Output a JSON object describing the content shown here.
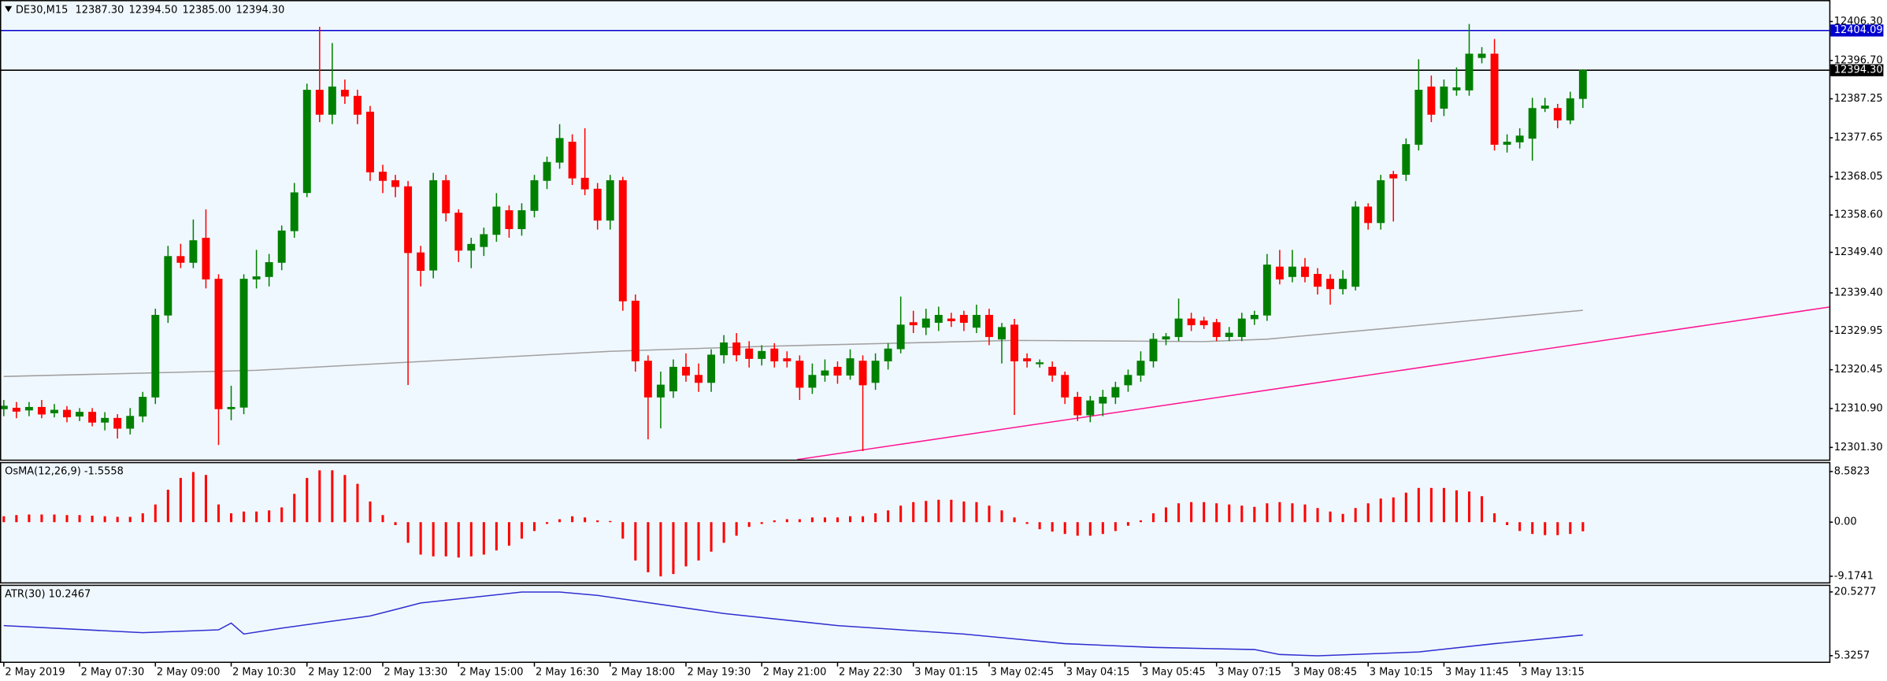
{
  "chart_data": [
    {
      "type": "candlestick",
      "title": "DE30,M15",
      "header_labels": [
        "12387.30",
        "12394.50",
        "12385.00",
        "12394.30"
      ],
      "bull_color": "#008000",
      "bear_color": "#ff0000",
      "xlim": [
        -0.3,
        144.5
      ],
      "xticks": [
        {
          "value": 0,
          "label": "2 May 2019"
        },
        {
          "value": 6,
          "label": "2 May 07:30"
        },
        {
          "value": 12,
          "label": "2 May 09:00"
        },
        {
          "value": 18,
          "label": "2 May 10:30"
        },
        {
          "value": 24,
          "label": "2 May 12:00"
        },
        {
          "value": 30,
          "label": "2 May 13:30"
        },
        {
          "value": 36,
          "label": "2 May 15:00"
        },
        {
          "value": 42,
          "label": "2 May 16:30"
        },
        {
          "value": 48,
          "label": "2 May 18:00"
        },
        {
          "value": 54,
          "label": "2 May 19:30"
        },
        {
          "value": 60,
          "label": "2 May 21:00"
        },
        {
          "value": 66,
          "label": "2 May 22:30"
        },
        {
          "value": 72,
          "label": "3 May 01:15"
        },
        {
          "value": 78,
          "label": "3 May 02:45"
        },
        {
          "value": 84,
          "label": "3 May 04:15"
        },
        {
          "value": 90,
          "label": "3 May 05:45"
        },
        {
          "value": 96,
          "label": "3 May 07:15"
        },
        {
          "value": 102,
          "label": "3 May 08:45"
        },
        {
          "value": 108,
          "label": "3 May 10:15"
        },
        {
          "value": 114,
          "label": "3 May 11:45"
        },
        {
          "value": 120,
          "label": "3 May 13:15"
        }
      ],
      "ylim": [
        12298.3,
        12411.6
      ],
      "yticks": [
        {
          "value": 12406.3,
          "label": "12406.30"
        },
        {
          "value": 12396.7,
          "label": "12396.70"
        },
        {
          "value": 12387.25,
          "label": "12387.25"
        },
        {
          "value": 12377.65,
          "label": "12377.65"
        },
        {
          "value": 12368.05,
          "label": "12368.05"
        },
        {
          "value": 12358.6,
          "label": "12358.60"
        },
        {
          "value": 12349.4,
          "label": "12349.40"
        },
        {
          "value": 12339.4,
          "label": "12339.40"
        },
        {
          "value": 12329.95,
          "label": "12329.95"
        },
        {
          "value": 12320.45,
          "label": "12320.45"
        },
        {
          "value": 12310.9,
          "label": "12310.90"
        },
        {
          "value": 12301.3,
          "label": "12301.30"
        }
      ],
      "levels": [
        {
          "value": 12404.09,
          "label": "12404.09",
          "color": "#0000cd"
        },
        {
          "value": 12394.3,
          "label": "12394.30",
          "color": "#000000"
        }
      ],
      "ma": {
        "color": "#a0a0a0",
        "x": [
          0,
          20,
          48,
          60,
          80,
          95,
          100,
          110,
          125
        ],
        "values": [
          12318.8,
          12320.3,
          12325.0,
          12326.2,
          12327.7,
          12327.4,
          12328.0,
          12330.8,
          12335.1
        ]
      },
      "trendline": {
        "color": "#ff1493",
        "x": [
          62.8,
          144.5
        ],
        "values": [
          12298.3,
          12335.9
        ]
      },
      "open": [
        12310.8,
        12311.0,
        12310.5,
        12311.2,
        12309.8,
        12310.5,
        12309.0,
        12310.0,
        12307.5,
        12308.5,
        12306.0,
        12309.0,
        12313.7,
        12333.9,
        12348.4,
        12346.9,
        12352.9,
        12342.8,
        12310.8,
        12311.2,
        12342.8,
        12343.4,
        12346.9,
        12354.7,
        12364.1,
        12389.4,
        12383.4,
        12389.4,
        12387.9,
        12384.0,
        12369.2,
        12367.1,
        12365.6,
        12349.3,
        12345.0,
        12367.1,
        12359.1,
        12349.9,
        12350.8,
        12353.8,
        12359.7,
        12355.2,
        12359.7,
        12367.1,
        12371.6,
        12376.6,
        12367.7,
        12365.0,
        12357.3,
        12367.1,
        12337.4,
        12322.6,
        12313.7,
        12315.2,
        12321.1,
        12319.1,
        12317.3,
        12324.1,
        12327.1,
        12325.6,
        12323.2,
        12325.6,
        12323.2,
        12322.6,
        12316.1,
        12319.1,
        12321.1,
        12319.1,
        12322.6,
        12317.3,
        12322.6,
        12325.6,
        12332.1,
        12330.9,
        12332.1,
        12333.0,
        12333.9,
        12330.9,
        12333.9,
        12328.0,
        12331.5,
        12323.2,
        12322.0,
        12321.1,
        12319.1,
        12313.7,
        12309.3,
        12312.2,
        12313.7,
        12316.7,
        12319.1,
        12322.6,
        12328.0,
        12328.6,
        12333.0,
        12332.5,
        12332.1,
        12328.6,
        12328.6,
        12333.0,
        12333.9,
        12345.8,
        12343.4,
        12345.8,
        12344.0,
        12342.8,
        12340.4,
        12341.0,
        12360.6,
        12356.7,
        12368.6,
        12368.6,
        12376.0,
        12390.2,
        12384.9,
        12389.4,
        12389.4,
        12397.4,
        12398.3,
        12376.0,
        12376.6,
        12377.5,
        12384.9,
        12384.9,
        12382.0,
        12387.3
      ],
      "high": [
        12313,
        12312.5,
        12312.5,
        12313,
        12312,
        12311.5,
        12311,
        12311,
        12310,
        12309.5,
        12311,
        12315,
        12335.5,
        12351,
        12351.5,
        12357.5,
        12360,
        12344,
        12316.5,
        12344,
        12350,
        12349,
        12356,
        12366.5,
        12391,
        12405,
        12401,
        12392,
        12389.5,
        12385.5,
        12371,
        12368.5,
        12367,
        12351,
        12369,
        12368.5,
        12360,
        12353,
        12355.5,
        12364,
        12361,
        12361.5,
        12368.5,
        12373,
        12381,
        12378.5,
        12380,
        12366.5,
        12368.5,
        12368,
        12339,
        12324,
        12320,
        12323,
        12324.5,
        12322,
        12325.5,
        12329,
        12329.5,
        12327.5,
        12326.5,
        12327,
        12325,
        12324,
        12322,
        12323,
        12322.5,
        12325.5,
        12324,
        12324.5,
        12327,
        12338.5,
        12335,
        12335.5,
        12336,
        12334.5,
        12335,
        12336.5,
        12335.5,
        12332,
        12333,
        12324.5,
        12323,
        12322.5,
        12320,
        12315,
        12314,
        12315.5,
        12317.5,
        12320.5,
        12325,
        12329.5,
        12329.5,
        12338,
        12334.5,
        12333.5,
        12333,
        12331,
        12334.5,
        12335,
        12349,
        12350,
        12350,
        12348,
        12345.5,
        12344,
        12345,
        12362,
        12361.5,
        12368.5,
        12369.5,
        12377.5,
        12397,
        12393,
        12392,
        12395,
        12405.7,
        12400,
        12402,
        12378.5,
        12380,
        12387.5,
        12387.5,
        12386,
        12389,
        12394.5
      ],
      "low": [
        12309,
        12308.5,
        12309,
        12308.5,
        12308.7,
        12307.5,
        12307.8,
        12306.5,
        12305.5,
        12303.5,
        12304.5,
        12307.5,
        12312,
        12332,
        12345.5,
        12345.5,
        12340.5,
        12301.9,
        12308,
        12309.5,
        12340.5,
        12341,
        12345,
        12353,
        12363,
        12381.5,
        12381,
        12386,
        12381,
        12367,
        12364,
        12363,
        12316.7,
        12341,
        12343,
        12357,
        12347,
        12345.5,
        12348.5,
        12352,
        12353,
        12353.5,
        12358,
        12365,
        12370,
        12366,
        12363.5,
        12355,
        12355,
        12335,
        12320,
        12303.3,
        12306,
        12313.5,
        12317.5,
        12315,
        12315,
        12322,
        12322.5,
        12321,
        12321.5,
        12321,
        12321,
        12313,
        12314.5,
        12317.5,
        12317,
        12318,
        12300.4,
        12315.5,
        12320.5,
        12324.5,
        12329.5,
        12329,
        12330,
        12331,
        12330,
        12329.5,
        12326.5,
        12322,
        12309.3,
        12321,
        12321,
        12317.5,
        12312,
        12307.8,
        12307.5,
        12309,
        12312,
        12315,
        12317.5,
        12321,
        12326.5,
        12327.5,
        12330,
        12330.5,
        12327.5,
        12327.5,
        12327.5,
        12331.5,
        12332.5,
        12341.5,
        12342,
        12342,
        12339,
        12336.5,
        12339,
        12340,
        12355,
        12355,
        12357,
        12367,
        12374.5,
        12381.5,
        12383,
        12388,
        12388,
        12396,
        12374.5,
        12374,
        12375,
        12372,
        12384,
        12380,
        12381,
        12385
      ],
      "close": [
        12311.5,
        12310.2,
        12311.2,
        12309.5,
        12310.5,
        12308.8,
        12310.0,
        12307.5,
        12308.5,
        12306.0,
        12309.0,
        12313.7,
        12333.9,
        12348.4,
        12346.9,
        12352.3,
        12342.8,
        12310.8,
        12311.2,
        12342.8,
        12343.4,
        12346.9,
        12354.7,
        12364.1,
        12389.4,
        12383.4,
        12390.2,
        12387.9,
        12383.4,
        12369.2,
        12367.1,
        12365.6,
        12349.3,
        12344.9,
        12367.1,
        12359.1,
        12349.9,
        12351.4,
        12353.8,
        12360.6,
        12355.2,
        12359.7,
        12367.1,
        12371.6,
        12377.5,
        12367.7,
        12365.0,
        12357.3,
        12367.1,
        12337.4,
        12322.6,
        12313.7,
        12316.7,
        12321.1,
        12319.1,
        12317.3,
        12324.1,
        12327.1,
        12324.1,
        12323.2,
        12325.0,
        12322.6,
        12322.6,
        12316.1,
        12319.1,
        12320.2,
        12319.1,
        12323.2,
        12316.7,
        12322.6,
        12325.6,
        12331.5,
        12331.5,
        12333.0,
        12333.9,
        12332.5,
        12332.1,
        12333.9,
        12328.6,
        12330.9,
        12322.6,
        12322.6,
        12322.2,
        12319.1,
        12313.7,
        12309.3,
        12312.8,
        12313.7,
        12316.1,
        12319.1,
        12322.6,
        12328.0,
        12328.6,
        12333.0,
        12331.5,
        12331.5,
        12328.6,
        12329.5,
        12333.0,
        12333.9,
        12346.3,
        12342.8,
        12345.8,
        12343.4,
        12341.0,
        12340.4,
        12342.8,
        12360.6,
        12356.7,
        12367.1,
        12367.7,
        12376.0,
        12389.4,
        12383.4,
        12390.2,
        12390.0,
        12398.3,
        12398.3,
        12376.0,
        12376.6,
        12378.1,
        12384.9,
        12385.5,
        12382.0,
        12387.3,
        12394.3
      ]
    },
    {
      "type": "bar",
      "title": "OsMA(12,26,9) -1.5558",
      "color": "#ff0000",
      "ylim": [
        -10.2,
        10.2
      ],
      "yticks": [
        8.5823,
        {
          "value": 0,
          "label": "0.00"
        },
        -9.1741
      ],
      "values": [
        1.0,
        1.2,
        1.3,
        1.3,
        1.3,
        1.2,
        1.2,
        1.1,
        1.0,
        0.9,
        0.9,
        1.5,
        3.0,
        5.5,
        7.5,
        8.5,
        8.0,
        3.0,
        1.5,
        1.8,
        1.8,
        2.0,
        2.5,
        4.8,
        7.5,
        8.8,
        8.8,
        8.0,
        6.5,
        3.5,
        1.2,
        -0.5,
        -3.5,
        -5.5,
        -5.8,
        -5.8,
        -6.0,
        -5.8,
        -5.5,
        -4.8,
        -4.0,
        -2.8,
        -1.5,
        -0.3,
        0.5,
        1.0,
        0.8,
        0.3,
        0.2,
        -2.8,
        -6.5,
        -8.5,
        -9.2,
        -8.8,
        -7.5,
        -6.5,
        -5.0,
        -3.5,
        -2.3,
        -0.8,
        -0.3,
        0.3,
        0.5,
        0.5,
        0.8,
        0.8,
        0.8,
        1.0,
        1.0,
        1.5,
        2.0,
        2.8,
        3.4,
        3.6,
        3.8,
        3.8,
        3.5,
        3.4,
        2.8,
        2.0,
        0.8,
        -0.3,
        -1.2,
        -1.6,
        -2.0,
        -2.3,
        -2.3,
        -2.0,
        -1.5,
        -0.6,
        0.3,
        1.5,
        2.5,
        3.2,
        3.4,
        3.4,
        3.2,
        3.0,
        2.8,
        2.6,
        3.2,
        3.4,
        3.2,
        3.0,
        2.4,
        1.8,
        1.4,
        2.4,
        3.2,
        4.0,
        4.2,
        5.0,
        5.8,
        5.8,
        5.8,
        5.4,
        5.2,
        4.4,
        1.5,
        -0.5,
        -1.5,
        -2.0,
        -2.2,
        -2.2,
        -2.0,
        -1.5558
      ]
    },
    {
      "type": "line",
      "title": "ATR(30) 10.2467",
      "color": "#3030d0",
      "ylim": [
        3.89,
        22.25
      ],
      "yticks": [
        20.5277,
        5.3257
      ],
      "x": [
        0,
        11,
        17,
        18,
        19,
        22,
        29,
        33,
        41,
        44,
        47,
        57,
        66,
        76,
        84,
        91,
        99,
        101,
        104,
        112,
        118,
        125
      ],
      "values": [
        12.5,
        10.8,
        11.5,
        13.1,
        10.5,
        11.9,
        14.8,
        17.9,
        20.5,
        20.5,
        19.7,
        15.4,
        12.5,
        10.5,
        8.2,
        7.3,
        6.8,
        5.6,
        5.3,
        6.2,
        8.2,
        10.2467
      ]
    }
  ]
}
